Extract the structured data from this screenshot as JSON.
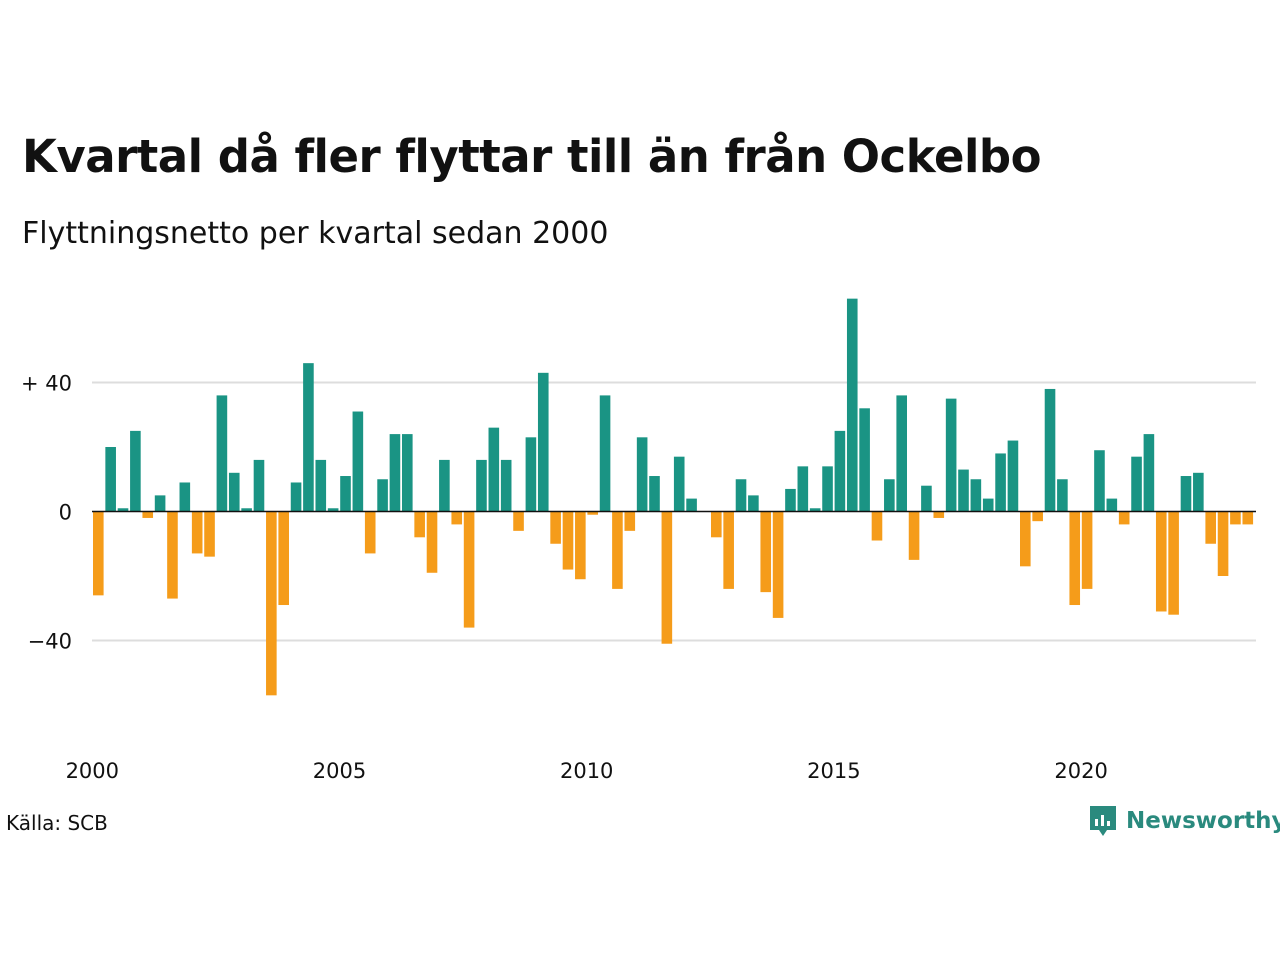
{
  "title": "Kvartal då fler flyttar till än från Ockelbo",
  "subtitle": "Flyttningsnetto per kvartal sedan 2000",
  "source": "Källa: SCB",
  "brand": {
    "name": "Newsworthy",
    "logo_icon": "newsworthy-chart-bubble-icon"
  },
  "colors": {
    "positive": "#1a9484",
    "negative": "#f59c1a",
    "grid": "#dddddd",
    "zero": "#111111",
    "brand": "#2a8a7e"
  },
  "chart_data": {
    "type": "bar",
    "x_start": "2000-Q1",
    "x_ticks": [
      "2000",
      "2005",
      "2010",
      "2015",
      "2020"
    ],
    "y_ticks": [
      40,
      0,
      -40
    ],
    "y_tick_labels": [
      "+ 40",
      "0",
      "−40"
    ],
    "ylim": [
      -63,
      70
    ],
    "grid": true,
    "values": [
      -26,
      20,
      1,
      25,
      -2,
      5,
      -27,
      9,
      -13,
      -14,
      36,
      12,
      1,
      16,
      -57,
      -29,
      9,
      46,
      16,
      1,
      11,
      31,
      -13,
      10,
      24,
      24,
      -8,
      -19,
      16,
      -4,
      -36,
      16,
      26,
      16,
      -6,
      23,
      43,
      -10,
      -18,
      -21,
      -1,
      36,
      -24,
      -6,
      23,
      11,
      -41,
      17,
      4,
      0,
      -8,
      -24,
      10,
      5,
      -25,
      -33,
      7,
      14,
      1,
      14,
      25,
      66,
      32,
      -9,
      10,
      36,
      -15,
      8,
      -2,
      35,
      13,
      10,
      4,
      18,
      22,
      -17,
      -3,
      38,
      10,
      -29,
      -24,
      19,
      4,
      -4,
      17,
      24,
      -31,
      -32,
      11,
      12,
      -10,
      -20,
      -4,
      -4
    ]
  }
}
